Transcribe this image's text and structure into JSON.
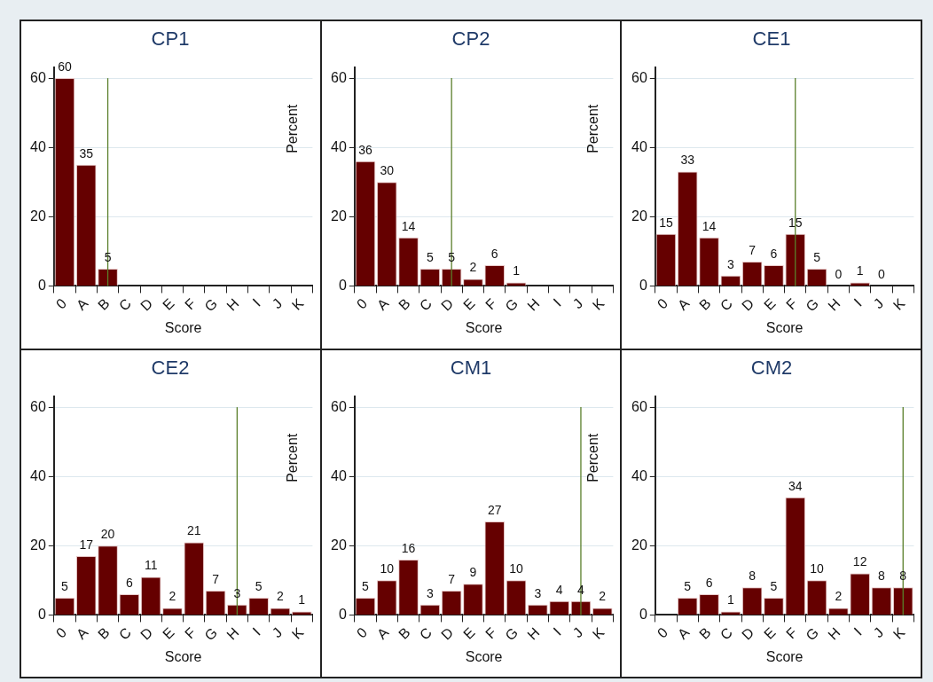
{
  "chart_data": [
    {
      "type": "bar",
      "title": "CP1",
      "categories": [
        "0",
        "A",
        "B",
        "C",
        "D",
        "E",
        "F",
        "G",
        "H",
        "I",
        "J",
        "K"
      ],
      "values": [
        60,
        35,
        5,
        null,
        null,
        null,
        null,
        null,
        null,
        null,
        null,
        null
      ],
      "color": "#650000",
      "ylim": [
        0,
        63
      ],
      "yticks": [
        0,
        20,
        40,
        60
      ],
      "xlabel": "Score",
      "ylabel": "Percent",
      "grid": "y",
      "data_labels": true,
      "ref_lines": [
        {
          "axis": "x",
          "value": "B",
          "color": "#5a7f2a"
        }
      ]
    },
    {
      "type": "bar",
      "title": "CP2",
      "categories": [
        "0",
        "A",
        "B",
        "C",
        "D",
        "E",
        "F",
        "G",
        "H",
        "I",
        "J",
        "K"
      ],
      "values": [
        36,
        30,
        14,
        5,
        5,
        2,
        6,
        1,
        null,
        null,
        null,
        null
      ],
      "color": "#650000",
      "ylim": [
        0,
        63
      ],
      "yticks": [
        0,
        20,
        40,
        60
      ],
      "xlabel": "Score",
      "ylabel": "Percent",
      "grid": "y",
      "data_labels": true,
      "ref_lines": [
        {
          "axis": "x",
          "value": "D",
          "color": "#5a7f2a"
        }
      ]
    },
    {
      "type": "bar",
      "title": "CE1",
      "categories": [
        "0",
        "A",
        "B",
        "C",
        "D",
        "E",
        "F",
        "G",
        "H",
        "I",
        "J",
        "K"
      ],
      "values": [
        15,
        33,
        14,
        3,
        7,
        6,
        15,
        5,
        0,
        1,
        0,
        null
      ],
      "color": "#650000",
      "ylim": [
        0,
        63
      ],
      "yticks": [
        0,
        20,
        40,
        60
      ],
      "xlabel": "Score",
      "grid": "y",
      "data_labels": true,
      "ref_lines": [
        {
          "axis": "x",
          "value": "F",
          "color": "#5a7f2a"
        }
      ]
    },
    {
      "type": "bar",
      "title": "CE2",
      "categories": [
        "0",
        "A",
        "B",
        "C",
        "D",
        "E",
        "F",
        "G",
        "H",
        "I",
        "J",
        "K"
      ],
      "values": [
        5,
        17,
        20,
        6,
        11,
        2,
        21,
        7,
        3,
        5,
        2,
        1
      ],
      "color": "#650000",
      "ylim": [
        0,
        63
      ],
      "yticks": [
        0,
        20,
        40,
        60
      ],
      "xlabel": "Score",
      "ylabel": "Percent",
      "grid": "y",
      "data_labels": true,
      "ref_lines": [
        {
          "axis": "x",
          "value": "H",
          "color": "#5a7f2a"
        }
      ]
    },
    {
      "type": "bar",
      "title": "CM1",
      "categories": [
        "0",
        "A",
        "B",
        "C",
        "D",
        "E",
        "F",
        "G",
        "H",
        "I",
        "J",
        "K"
      ],
      "values": [
        5,
        10,
        16,
        3,
        7,
        9,
        27,
        10,
        3,
        4,
        4,
        2
      ],
      "color": "#650000",
      "ylim": [
        0,
        63
      ],
      "yticks": [
        0,
        20,
        40,
        60
      ],
      "xlabel": "Score",
      "ylabel": "Percent",
      "grid": "y",
      "data_labels": true,
      "ref_lines": [
        {
          "axis": "x",
          "value": "J",
          "color": "#5a7f2a"
        }
      ]
    },
    {
      "type": "bar",
      "title": "CM2",
      "categories": [
        "0",
        "A",
        "B",
        "C",
        "D",
        "E",
        "F",
        "G",
        "H",
        "I",
        "J",
        "K"
      ],
      "values": [
        null,
        5,
        6,
        1,
        8,
        5,
        34,
        10,
        2,
        12,
        8,
        8
      ],
      "color": "#650000",
      "ylim": [
        0,
        63
      ],
      "yticks": [
        0,
        20,
        40,
        60
      ],
      "xlabel": "Score",
      "grid": "y",
      "data_labels": true,
      "ref_lines": [
        {
          "axis": "x",
          "value": "K",
          "color": "#5a7f2a"
        }
      ]
    }
  ]
}
